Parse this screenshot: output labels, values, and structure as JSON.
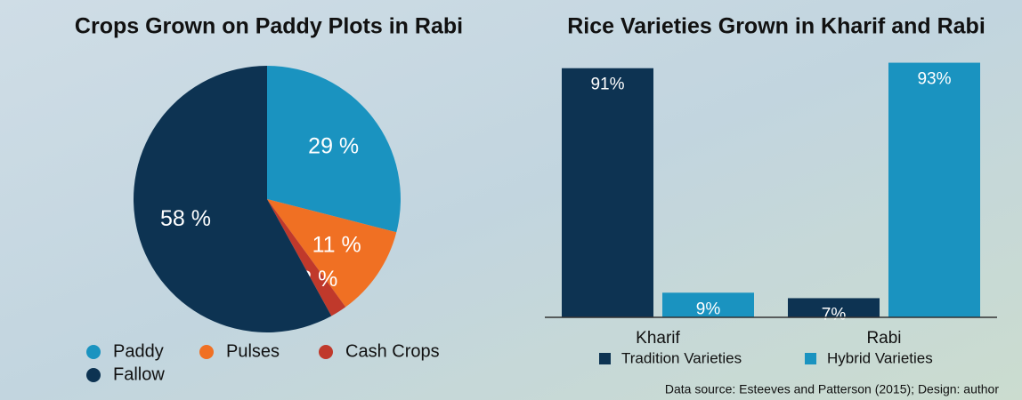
{
  "chart_data": [
    {
      "type": "pie",
      "title": "Crops Grown on Paddy Plots in Rabi",
      "categories": [
        "Paddy",
        "Pulses",
        "Cash Crops",
        "Fallow"
      ],
      "values": [
        29,
        11,
        2,
        58
      ],
      "value_labels": [
        "29 %",
        "11 %",
        "2 %",
        "58 %"
      ],
      "colors": [
        "#1a93c0",
        "#f07023",
        "#c0392b",
        "#0d3352"
      ]
    },
    {
      "type": "bar",
      "title": "Rice Varieties Grown in Kharif and Rabi",
      "categories": [
        "Kharif",
        "Rabi"
      ],
      "series": [
        {
          "name": "Tradition Varieties",
          "color": "#0d3352",
          "values": [
            91,
            7
          ],
          "value_labels": [
            "91%",
            "7%"
          ]
        },
        {
          "name": "Hybrid Varieties",
          "color": "#1a93c0",
          "values": [
            9,
            93
          ],
          "value_labels": [
            "9%",
            "93%"
          ]
        }
      ],
      "ylim": [
        0,
        100
      ]
    }
  ],
  "source": "Data source: Esteeves and Patterson (2015); Design: author"
}
